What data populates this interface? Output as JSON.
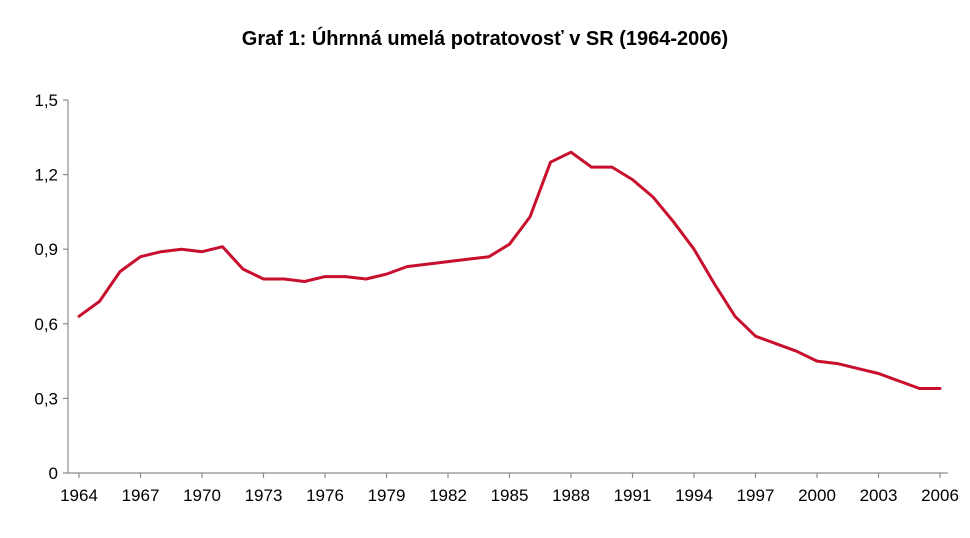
{
  "chart_data": {
    "type": "line",
    "title": "Graf 1: Úhrnná umelá potratovosť v SR (1964-2006)",
    "xlabel": "",
    "ylabel": "",
    "ylim": [
      0,
      1.5
    ],
    "xlim": [
      1964,
      2006
    ],
    "y_ticks": [
      "0",
      "0,3",
      "0,6",
      "0,9",
      "1,2",
      "1,5"
    ],
    "y_tick_values": [
      0,
      0.3,
      0.6,
      0.9,
      1.2,
      1.5
    ],
    "x_ticks": [
      "1964",
      "1967",
      "1970",
      "1973",
      "1976",
      "1979",
      "1982",
      "1985",
      "1988",
      "1991",
      "1994",
      "1997",
      "2000",
      "2003",
      "2006"
    ],
    "x_tick_values": [
      1964,
      1967,
      1970,
      1973,
      1976,
      1979,
      1982,
      1985,
      1988,
      1991,
      1994,
      1997,
      2000,
      2003,
      2006
    ],
    "grid": false,
    "color": "#c8102e",
    "series": [
      {
        "x": [
          1964,
          1965,
          1966,
          1967,
          1968,
          1969,
          1970,
          1971,
          1972,
          1973,
          1974,
          1975,
          1976,
          1977,
          1978,
          1979,
          1980,
          1981,
          1982,
          1983,
          1984,
          1985,
          1986,
          1987,
          1988,
          1989,
          1990,
          1991,
          1992,
          1993,
          1994,
          1995,
          1996,
          1997,
          1998,
          1999,
          2000,
          2001,
          2002,
          2003,
          2004,
          2005,
          2006
        ],
        "values": [
          0.63,
          0.69,
          0.81,
          0.87,
          0.89,
          0.9,
          0.89,
          0.91,
          0.82,
          0.78,
          0.78,
          0.77,
          0.79,
          0.79,
          0.78,
          0.8,
          0.83,
          0.84,
          0.85,
          0.86,
          0.87,
          0.92,
          1.03,
          1.25,
          1.29,
          1.23,
          1.23,
          1.18,
          1.11,
          1.01,
          0.9,
          0.76,
          0.63,
          0.55,
          0.52,
          0.49,
          0.45,
          0.44,
          0.42,
          0.4,
          0.37,
          0.34,
          0.34
        ]
      }
    ]
  }
}
